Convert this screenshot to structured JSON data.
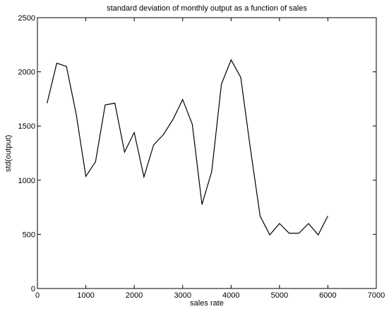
{
  "chart_data": {
    "type": "line",
    "title": "standard deviation of monthly output as a function of sales",
    "xlabel": "sales rate",
    "ylabel": "std(output)",
    "xlim": [
      0,
      7000
    ],
    "ylim": [
      0,
      2500
    ],
    "xticks": [
      0,
      1000,
      2000,
      3000,
      4000,
      5000,
      6000,
      7000
    ],
    "yticks": [
      0,
      500,
      1000,
      1500,
      2000,
      2500
    ],
    "grid": false,
    "legend": "none",
    "line_color": "#000000",
    "series": [
      {
        "x": [
          200,
          400,
          600,
          800,
          1000,
          1200,
          1400,
          1600,
          1800,
          2000,
          2200,
          2400,
          2600,
          2800,
          3000,
          3200,
          3400,
          3600,
          3800,
          4000,
          4200,
          4400,
          4600,
          4800,
          5000,
          5200,
          5400,
          5600,
          5800,
          6000
        ],
        "y": [
          1710,
          2080,
          2050,
          1610,
          1035,
          1170,
          1695,
          1710,
          1260,
          1440,
          1030,
          1325,
          1420,
          1560,
          1745,
          1515,
          775,
          1080,
          1885,
          2110,
          1950,
          1290,
          670,
          495,
          600,
          510,
          510,
          600,
          495,
          670
        ]
      }
    ]
  }
}
